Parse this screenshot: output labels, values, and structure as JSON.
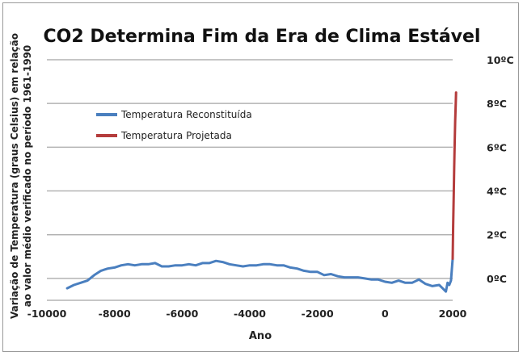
{
  "chart_data": {
    "type": "line",
    "title": "CO2 Determina Fim da Era de Clima Estável",
    "xlabel": "Ano",
    "ylabel_line1": "Variação de Temperatura (graus Celsius) em relação",
    "ylabel_line2": "ao valor médio verificado no período 1961-1990",
    "xlim": [
      -10000,
      2000
    ],
    "ylim": [
      -1,
      10
    ],
    "x_ticks": [
      -10000,
      -8000,
      -6000,
      -4000,
      -2000,
      0,
      2000
    ],
    "x_tick_labels": [
      "-10000",
      "-8000",
      "-6000",
      "-4000",
      "-2000",
      "0",
      "2000"
    ],
    "y_ticks": [
      0,
      2,
      4,
      6,
      8,
      10
    ],
    "y_tick_labels": [
      "0ºC",
      "2ºC",
      "4ºC",
      "6ºC",
      "8ºC",
      "10ºC"
    ],
    "grid": true,
    "legend_position": "top-left",
    "series": [
      {
        "name": "Temperatura Reconstituída",
        "color": "#4a7fbf",
        "x": [
          -9400,
          -9200,
          -9000,
          -8800,
          -8600,
          -8400,
          -8200,
          -8000,
          -7800,
          -7600,
          -7400,
          -7200,
          -7000,
          -6800,
          -6600,
          -6400,
          -6200,
          -6000,
          -5800,
          -5600,
          -5400,
          -5200,
          -5000,
          -4800,
          -4600,
          -4400,
          -4200,
          -4000,
          -3800,
          -3600,
          -3400,
          -3200,
          -3000,
          -2800,
          -2600,
          -2400,
          -2200,
          -2000,
          -1800,
          -1600,
          -1400,
          -1200,
          -1000,
          -800,
          -600,
          -400,
          -200,
          0,
          200,
          400,
          600,
          800,
          1000,
          1200,
          1400,
          1600,
          1700,
          1800,
          1850,
          1900,
          1950,
          2000
        ],
        "y": [
          -0.45,
          -0.3,
          -0.2,
          -0.1,
          0.15,
          0.35,
          0.45,
          0.5,
          0.6,
          0.65,
          0.6,
          0.65,
          0.65,
          0.7,
          0.55,
          0.55,
          0.6,
          0.6,
          0.65,
          0.6,
          0.7,
          0.7,
          0.8,
          0.75,
          0.65,
          0.6,
          0.55,
          0.6,
          0.6,
          0.65,
          0.65,
          0.6,
          0.6,
          0.5,
          0.45,
          0.35,
          0.3,
          0.3,
          0.15,
          0.2,
          0.1,
          0.05,
          0.05,
          0.05,
          0.0,
          -0.05,
          -0.05,
          -0.15,
          -0.2,
          -0.1,
          -0.2,
          -0.2,
          -0.05,
          -0.25,
          -0.35,
          -0.3,
          -0.45,
          -0.6,
          -0.2,
          -0.3,
          -0.1,
          0.9
        ]
      },
      {
        "name": "Temperatura Projetada",
        "color": "#b43c3c",
        "x": [
          2000,
          2015,
          2030,
          2045,
          2060,
          2075,
          2090,
          2100
        ],
        "y": [
          0.9,
          2.4,
          3.8,
          5.1,
          6.2,
          7.2,
          8.0,
          8.5
        ]
      }
    ]
  }
}
